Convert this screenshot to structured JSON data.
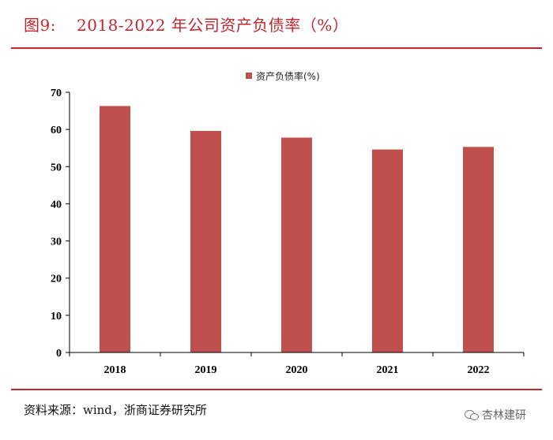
{
  "figure": {
    "number": "图9:",
    "title": "2018-2022 年公司资产负债率（%）"
  },
  "source_text": "资料来源：wind，浙商证券研究所",
  "watermark": "杏林建研",
  "colors": {
    "accent": "#c0282e",
    "bar": "#c0504d",
    "axis": "#000000"
  },
  "chart_data": {
    "type": "bar",
    "title": "",
    "categories": [
      "2018",
      "2019",
      "2020",
      "2021",
      "2022"
    ],
    "series": [
      {
        "name": "资产负债率(%)",
        "values": [
          66.3,
          59.6,
          57.8,
          54.6,
          55.3
        ]
      }
    ],
    "ylim": [
      0,
      70
    ],
    "yticks": [
      0,
      10,
      20,
      30,
      40,
      50,
      60,
      70
    ],
    "xlabel": "",
    "ylabel": "",
    "legend": "top-center",
    "grid": false
  }
}
